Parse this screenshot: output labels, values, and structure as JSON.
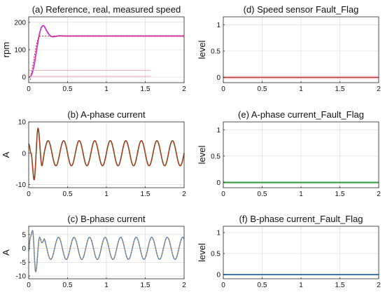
{
  "chart_data": [
    {
      "id": "a",
      "type": "line",
      "title": "(a) Reference, real, measured speed",
      "ylabel": "rpm",
      "xlim": [
        0,
        2
      ],
      "ylim": [
        -20,
        220
      ],
      "xticks": [
        "0",
        "0.5",
        "1",
        "1.5",
        "2"
      ],
      "yticks": [
        0,
        100,
        200
      ],
      "yticklabels": [
        "0",
        "100",
        "200"
      ],
      "grid": true,
      "series": [
        {
          "color": "#cc33cc",
          "dash": false,
          "width": 1.8,
          "x": [
            0,
            0.02,
            0.04,
            0.06,
            0.08,
            0.1,
            0.12,
            0.14,
            0.16,
            0.18,
            0.2,
            0.22,
            0.25,
            0.28,
            0.31,
            0.35,
            0.4,
            0.45,
            0.5,
            0.6,
            0.8,
            1.0,
            1.5,
            2.0
          ],
          "y": [
            0,
            2,
            10,
            30,
            60,
            95,
            130,
            160,
            180,
            188,
            186,
            175,
            160,
            150,
            147,
            149,
            151,
            150,
            150,
            150,
            150,
            150,
            150,
            150
          ]
        },
        {
          "color": "#cc2222",
          "dash": true,
          "width": 1.0,
          "x": [
            0.02,
            0.06,
            0.1,
            0.13,
            0.16,
            0.2,
            0.25,
            0.3,
            0.4,
            0.5,
            1.0,
            1.5,
            2.0
          ],
          "y": [
            -10,
            55,
            120,
            148,
            150,
            150,
            150,
            150,
            150,
            150,
            150,
            150,
            150
          ]
        },
        {
          "color": "#f0a6b8",
          "dash": false,
          "width": 1.0,
          "x": [
            0.0,
            1.57
          ],
          "y": [
            25,
            25
          ]
        },
        {
          "color": "#f0a6b8",
          "dash": false,
          "width": 1.0,
          "x": [
            0.0,
            1.57
          ],
          "y": [
            3,
            3
          ]
        }
      ]
    },
    {
      "id": "d",
      "type": "line",
      "title": "(d) Speed sensor Fault_Flag",
      "ylabel": "level",
      "xlim": [
        0,
        2
      ],
      "ylim": [
        -0.1,
        1.15
      ],
      "xticks": [
        "0",
        "0.5",
        "1",
        "1.5",
        "2"
      ],
      "yticks": [
        0,
        0.5,
        1
      ],
      "yticklabels": [
        "0",
        "0.5",
        "1"
      ],
      "grid": true,
      "series": [
        {
          "color": "#f5c6cf",
          "dash": false,
          "width": 4.0,
          "x": [
            0,
            2
          ],
          "y": [
            0,
            0
          ]
        },
        {
          "color": "#b83a2a",
          "dash": false,
          "width": 1.2,
          "x": [
            0,
            2
          ],
          "y": [
            0,
            0
          ]
        }
      ]
    },
    {
      "id": "b",
      "type": "line",
      "title": "(b) A-phase current",
      "ylabel": "A",
      "xlim": [
        0,
        2
      ],
      "ylim": [
        -11,
        10
      ],
      "xticks": [
        "0",
        "0.5",
        "1",
        "1.5",
        "2"
      ],
      "yticks": [
        -10,
        0,
        10
      ],
      "yticklabels": [
        "-10",
        "0",
        "10"
      ],
      "grid": true,
      "series": [
        {
          "color": "#5a4a12",
          "dash": false,
          "width": 1.6,
          "x": [],
          "y": []
        },
        {
          "color": "#c03820",
          "dash": false,
          "width": 0.9,
          "x": [],
          "y": []
        }
      ],
      "wave": {
        "amplitude": 4,
        "frequency_hz": 5,
        "phase": 0,
        "transient": {
          "t": [
            0,
            0.03,
            0.07,
            0.12,
            0.17,
            0.22
          ],
          "y": [
            3,
            0,
            -8.5,
            8,
            -4,
            2.5
          ]
        }
      }
    },
    {
      "id": "e",
      "type": "line",
      "title": "(e) A-phase current_Fault_Flag",
      "ylabel": "level",
      "xlim": [
        0,
        2
      ],
      "ylim": [
        -0.1,
        1.15
      ],
      "xticks": [
        "0",
        "0.5",
        "1",
        "1.5",
        "2"
      ],
      "yticks": [
        0,
        0.5,
        1
      ],
      "yticklabels": [
        "0",
        "0.5",
        "1"
      ],
      "grid": true,
      "series": [
        {
          "color": "#2e9a3a",
          "dash": false,
          "width": 2.0,
          "x": [
            0,
            2
          ],
          "y": [
            0,
            0
          ]
        }
      ]
    },
    {
      "id": "c",
      "type": "line",
      "title": "(c) B-phase current",
      "ylabel": "A",
      "xlim": [
        0,
        2
      ],
      "ylim": [
        -11,
        8
      ],
      "xticks": [
        "0",
        "0.5",
        "1",
        "1.5",
        "2"
      ],
      "yticks": [
        -10,
        -5,
        0,
        5
      ],
      "yticklabels": [
        "-10",
        "-5",
        "0",
        "5"
      ],
      "grid": true,
      "series": [
        {
          "color": "#3a78c8",
          "dash": false,
          "width": 1.4,
          "x": [],
          "y": []
        },
        {
          "color": "#e08a2a",
          "dash": true,
          "width": 1.0,
          "x": [],
          "y": []
        }
      ],
      "wave": {
        "amplitude": 4,
        "frequency_hz": 5,
        "phase": 2.09,
        "transient": {
          "t": [
            0,
            0.02,
            0.05,
            0.09,
            0.14,
            0.2
          ],
          "y": [
            -1,
            4,
            6.5,
            -8.5,
            4,
            -2
          ]
        }
      }
    },
    {
      "id": "f",
      "type": "line",
      "title": "(f) B-phase current_Fault_Flag",
      "ylabel": "level",
      "xlim": [
        0,
        2
      ],
      "ylim": [
        -0.1,
        1.15
      ],
      "xticks": [
        "0",
        "0.5",
        "1",
        "1.5",
        "2"
      ],
      "yticks": [
        0,
        0.5,
        1
      ],
      "yticklabels": [
        "0",
        "0.5",
        "1"
      ],
      "grid": true,
      "series": [
        {
          "color": "#3a78c8",
          "dash": false,
          "width": 2.0,
          "x": [
            0,
            2
          ],
          "y": [
            0,
            0
          ]
        }
      ]
    }
  ]
}
